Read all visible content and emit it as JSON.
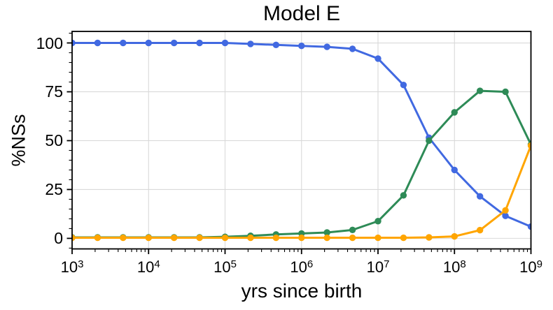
{
  "chart_data": {
    "type": "line",
    "title": "Model E",
    "xlabel": "yrs since birth",
    "ylabel": "%NSs",
    "x_scale": "log",
    "xlim": [
      1000,
      1000000000
    ],
    "ylim": [
      -5.4,
      105.9
    ],
    "x_tick_exponents": [
      3,
      4,
      5,
      6,
      7,
      8,
      9
    ],
    "y_ticks": [
      0,
      25,
      50,
      75,
      100
    ],
    "y_minor_step": 5,
    "grid": true,
    "grid_color": "#d9d9d9",
    "legend": "none",
    "x": [
      1000,
      2154,
      4642,
      10000,
      21544,
      46416,
      100000,
      215443,
      464159,
      1000000,
      2154435,
      4641589,
      10000000,
      21544347,
      46415888,
      100000000,
      215443469,
      464158883,
      1000000000
    ],
    "series": [
      {
        "name": "blue",
        "color": "#4169E1",
        "values": [
          100,
          100,
          100,
          100,
          100,
          100,
          100,
          99.5,
          99,
          98.5,
          98,
          97,
          92,
          78.5,
          51.5,
          35,
          21.5,
          11.5,
          6
        ]
      },
      {
        "name": "green",
        "color": "#2E8B57",
        "values": [
          0.5,
          0.5,
          0.5,
          0.5,
          0.5,
          0.5,
          0.8,
          1.3,
          2,
          2.5,
          3,
          4.3,
          8.8,
          22,
          50,
          64.5,
          75.5,
          75,
          48
        ]
      },
      {
        "name": "orange",
        "color": "#FFA500",
        "values": [
          0.3,
          0.3,
          0.3,
          0.3,
          0.3,
          0.3,
          0.3,
          0.3,
          0.3,
          0.3,
          0.3,
          0.3,
          0.3,
          0.3,
          0.5,
          1,
          4.2,
          14.3,
          47.5
        ]
      }
    ]
  }
}
